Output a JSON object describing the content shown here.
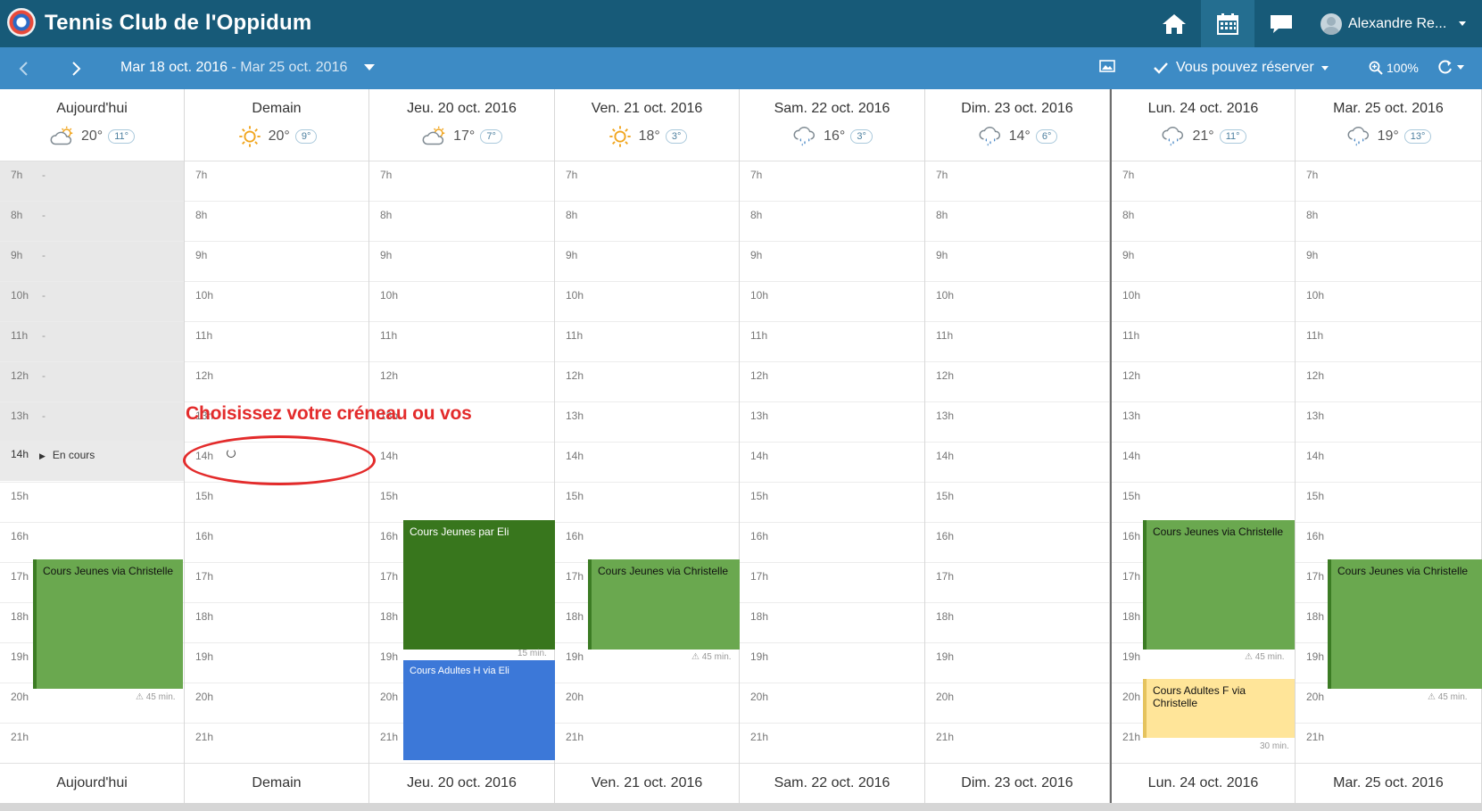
{
  "app": {
    "title": "Tennis Club de l'Oppidum",
    "user": "Alexandre Re..."
  },
  "toolbar": {
    "range_start": "Mar 18 oct. 2016",
    "range_sep": " - ",
    "range_end": "Mar 25 oct. 2016",
    "reserve_label": "Vous pouvez réserver",
    "zoom": "100%"
  },
  "hours": [
    "7h",
    "8h",
    "9h",
    "10h",
    "11h",
    "12h",
    "13h",
    "14h",
    "15h",
    "16h",
    "17h",
    "18h",
    "19h",
    "20h",
    "21h"
  ],
  "days": [
    {
      "name": "Aujourd'hui",
      "weather": "partly-cloudy",
      "tmax": "20°",
      "tmin": "11°"
    },
    {
      "name": "Demain",
      "weather": "sunny",
      "tmax": "20°",
      "tmin": "9°"
    },
    {
      "name": "Jeu. 20 oct. 2016",
      "weather": "partly-cloudy",
      "tmax": "17°",
      "tmin": "7°"
    },
    {
      "name": "Ven. 21 oct. 2016",
      "weather": "sunny",
      "tmax": "18°",
      "tmin": "3°"
    },
    {
      "name": "Sam. 22 oct. 2016",
      "weather": "rain",
      "tmax": "16°",
      "tmin": "3°"
    },
    {
      "name": "Dim. 23 oct. 2016",
      "weather": "rain",
      "tmax": "14°",
      "tmin": "6°"
    },
    {
      "name": "Lun. 24 oct. 2016",
      "weather": "rain",
      "tmax": "21°",
      "tmin": "11°"
    },
    {
      "name": "Mar. 25 oct. 2016",
      "weather": "rain",
      "tmax": "19°",
      "tmin": "13°"
    }
  ],
  "today": {
    "current_label": "En cours"
  },
  "events": {
    "e0": {
      "title": "Cours Jeunes via Christelle",
      "duration": "45 min."
    },
    "e1": {
      "title": "Cours Jeunes par Eli",
      "duration": "15 min."
    },
    "e2": {
      "title": "Cours Adultes H via Eli"
    },
    "e3": {
      "title": "Cours Jeunes via Christelle",
      "duration": "45 min."
    },
    "e4": {
      "title": "Cours Jeunes via Christelle",
      "duration": "45 min."
    },
    "e5": {
      "title": "Cours Adultes F via Christelle",
      "duration": "30 min."
    },
    "e6": {
      "title": "Cours Jeunes via Christelle",
      "duration": "45 min."
    }
  },
  "annotation": {
    "text": "Choisissez votre créneau ou vos"
  },
  "colors": {
    "header": "#175a78",
    "subbar": "#3d8bc5",
    "green": "#6aa84f",
    "dark_green": "#38761d",
    "blue": "#3c78d8",
    "yellow": "#ffe599",
    "annotation": "#e32b2b"
  }
}
